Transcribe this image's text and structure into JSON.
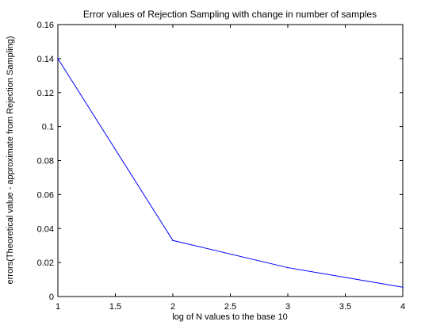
{
  "chart_data": {
    "type": "line",
    "title": "Error values of Rejection Sampling  with change in number of samples",
    "xlabel": "log of N values to the base 10",
    "ylabel": "errors(Theoretical value - approximate from Rejection Sampling)",
    "xlim": [
      1,
      4
    ],
    "ylim": [
      0,
      0.16
    ],
    "xticks": [
      "1",
      "1.5",
      "2",
      "2.5",
      "3",
      "3.5",
      "4"
    ],
    "yticks": [
      "0",
      "0.02",
      "0.04",
      "0.06",
      "0.08",
      "0.1",
      "0.12",
      "0.14",
      "0.16"
    ],
    "grid": false,
    "series": [
      {
        "color": "#0000ff",
        "x": [
          1,
          2,
          3,
          4
        ],
        "y": [
          0.14,
          0.033,
          0.017,
          0.0055
        ]
      }
    ]
  }
}
